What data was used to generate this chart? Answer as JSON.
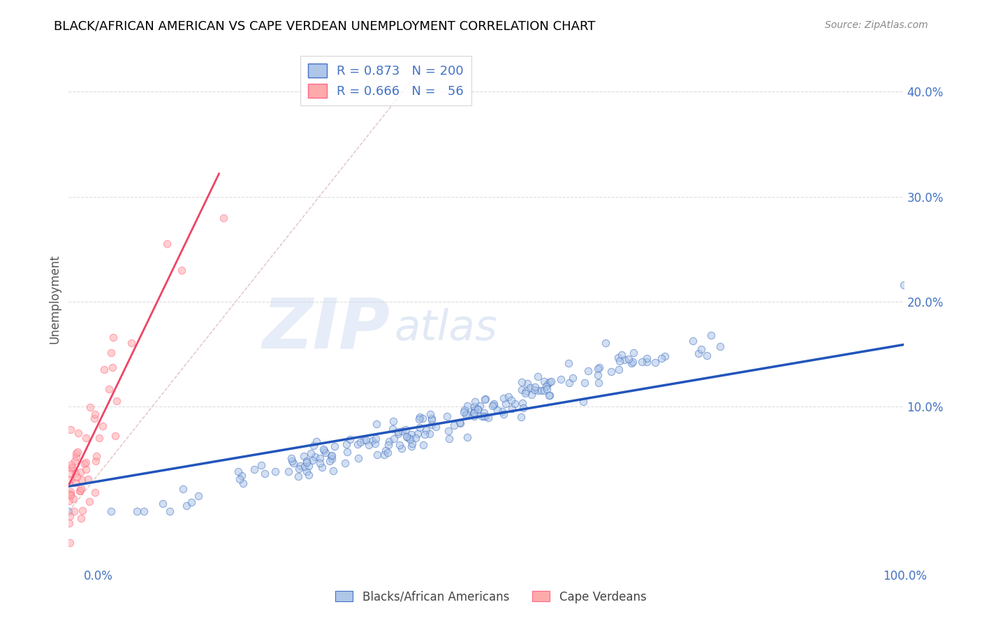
{
  "title": "BLACK/AFRICAN AMERICAN VS CAPE VERDEAN UNEMPLOYMENT CORRELATION CHART",
  "source": "Source: ZipAtlas.com",
  "ylabel": "Unemployment",
  "ytick_values": [
    0.1,
    0.2,
    0.3,
    0.4
  ],
  "ytick_labels": [
    "10.0%",
    "20.0%",
    "30.0%",
    "40.0%"
  ],
  "xlim": [
    0,
    1.0
  ],
  "ylim": [
    -0.035,
    0.44
  ],
  "watermark_zip": "ZIP",
  "watermark_atlas": "atlas",
  "legend_R_blue": "0.873",
  "legend_N_blue": "200",
  "legend_R_pink": "0.666",
  "legend_N_pink": "56",
  "blue_fill_color": "#AEC6E8",
  "blue_edge_color": "#4472C4",
  "pink_fill_color": "#FFAAAA",
  "pink_edge_color": "#FF6688",
  "blue_line_color": "#2255BB",
  "pink_line_color": "#EE4466",
  "diagonal_color": "#DDBBBB",
  "background_color": "#FFFFFF",
  "grid_color": "#DDDDDD",
  "title_color": "#000000",
  "source_color": "#888888",
  "axis_label_color": "#4472C4",
  "legend_text_color": "#4472C4",
  "seed": 42,
  "n_blue": 200,
  "n_pink": 56,
  "blue_slope": 0.135,
  "blue_intercept": 0.024,
  "pink_slope": 1.65,
  "pink_intercept": 0.025,
  "scatter_alpha": 0.55,
  "scatter_size": 55,
  "legend_bottom_labels": [
    "Blacks/African Americans",
    "Cape Verdeans"
  ]
}
